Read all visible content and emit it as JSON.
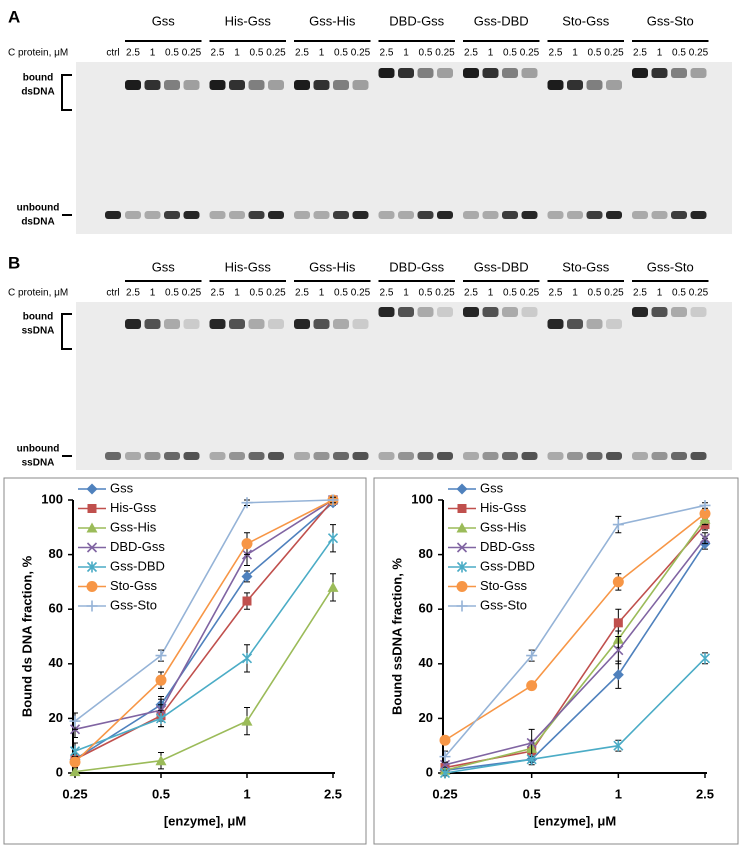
{
  "gels": [
    {
      "label": "A",
      "groups": [
        "Gss",
        "His-Gss",
        "Gss-His",
        "DBD-Gss",
        "Gss-DBD",
        "Sto-Gss",
        "Gss-Sto"
      ],
      "row_label": "C protein, μM",
      "lanes": [
        "ctrl",
        "2.5",
        "1",
        "0.5",
        "0.25",
        "2.5",
        "1",
        "0.5",
        "0.25",
        "2.5",
        "1",
        "0.5",
        "0.25",
        "2.5",
        "1",
        "0.5",
        "0.25",
        "2.5",
        "1",
        "0.5",
        "0.25",
        "2.5",
        "1",
        "0.5",
        "0.25",
        "2.5",
        "1",
        "0.5",
        "0.25"
      ],
      "bound_label": [
        "bound",
        "dsDNA"
      ],
      "unbound_label": [
        "unbound",
        "dsDNA"
      ]
    },
    {
      "label": "B",
      "groups": [
        "Gss",
        "His-Gss",
        "Gss-His",
        "DBD-Gss",
        "Gss-DBD",
        "Sto-Gss",
        "Gss-Sto"
      ],
      "row_label": "C protein, μM",
      "lanes": [
        "ctrl",
        "2.5",
        "1",
        "0.5",
        "0.25",
        "2.5",
        "1",
        "0.5",
        "0.25",
        "2.5",
        "1",
        "0.5",
        "0.25",
        "2.5",
        "1",
        "0.5",
        "0.25",
        "2.5",
        "1",
        "0.5",
        "0.25",
        "2.5",
        "1",
        "0.5",
        "0.25",
        "2.5",
        "1",
        "0.5",
        "0.25"
      ],
      "bound_label": [
        "bound",
        "ssDNA"
      ],
      "unbound_label": [
        "unbound",
        "ssDNA"
      ]
    }
  ],
  "chart_data": [
    {
      "type": "line",
      "x_label": "[enzyme], μM",
      "y_label": "Bound ds DNA fraction, %",
      "categories": [
        "0.25",
        "0.5",
        "1",
        "2.5"
      ],
      "ylim": [
        0,
        100
      ],
      "yticks": [
        0,
        20,
        40,
        60,
        80,
        100
      ],
      "legend": "top-left",
      "series": [
        {
          "name": "Gss",
          "color": "#4f81bd",
          "marker": "diamond",
          "values": [
            5,
            25,
            72,
            99
          ],
          "errors": [
            2,
            3,
            2,
            1
          ]
        },
        {
          "name": "His-Gss",
          "color": "#c0504d",
          "marker": "square",
          "values": [
            5,
            21,
            63,
            100
          ],
          "errors": [
            2,
            4,
            3,
            1
          ]
        },
        {
          "name": "Gss-His",
          "color": "#9bbb59",
          "marker": "triangle",
          "values": [
            0.5,
            4.5,
            19,
            68
          ],
          "errors": [
            1,
            3,
            5,
            5
          ]
        },
        {
          "name": "DBD-Gss",
          "color": "#8064a2",
          "marker": "x",
          "values": [
            16,
            23,
            80,
            100
          ],
          "errors": [
            3,
            4,
            4,
            1
          ]
        },
        {
          "name": "Gss-DBD",
          "color": "#4bacc6",
          "marker": "star",
          "values": [
            8,
            20,
            42,
            86
          ],
          "errors": [
            3,
            3,
            5,
            5
          ]
        },
        {
          "name": "Sto-Gss",
          "color": "#f79646",
          "marker": "circle",
          "values": [
            4,
            34,
            84,
            100
          ],
          "errors": [
            2,
            3,
            4,
            1
          ]
        },
        {
          "name": "Gss-Sto",
          "color": "#95b3d7",
          "marker": "plus",
          "values": [
            19,
            43,
            99,
            100
          ],
          "errors": [
            3,
            2,
            1,
            1
          ]
        }
      ]
    },
    {
      "type": "line",
      "x_label": "[enzyme], μM",
      "y_label": "Bound ssDNA fraction, %",
      "categories": [
        "0.25",
        "0.5",
        "1",
        "2.5"
      ],
      "ylim": [
        0,
        100
      ],
      "yticks": [
        0,
        20,
        40,
        60,
        80,
        100
      ],
      "legend": "top-left",
      "series": [
        {
          "name": "Gss",
          "color": "#4f81bd",
          "marker": "diamond",
          "values": [
            1,
            5,
            36,
            84
          ],
          "errors": [
            1,
            2,
            5,
            2
          ]
        },
        {
          "name": "His-Gss",
          "color": "#c0504d",
          "marker": "square",
          "values": [
            2,
            8,
            55,
            91
          ],
          "errors": [
            1,
            3,
            5,
            2
          ]
        },
        {
          "name": "Gss-His",
          "color": "#9bbb59",
          "marker": "triangle",
          "values": [
            1,
            9,
            49,
            93
          ],
          "errors": [
            1,
            3,
            3,
            2
          ]
        },
        {
          "name": "DBD-Gss",
          "color": "#8064a2",
          "marker": "x",
          "values": [
            3,
            11,
            45,
            86
          ],
          "errors": [
            1,
            5,
            5,
            2
          ]
        },
        {
          "name": "Gss-DBD",
          "color": "#4bacc6",
          "marker": "star",
          "values": [
            0,
            5,
            10,
            42
          ],
          "errors": [
            1,
            1,
            2,
            2
          ]
        },
        {
          "name": "Sto-Gss",
          "color": "#f79646",
          "marker": "circle",
          "values": [
            12,
            32,
            70,
            95
          ],
          "errors": [
            1,
            1,
            3,
            1
          ]
        },
        {
          "name": "Gss-Sto",
          "color": "#95b3d7",
          "marker": "plus",
          "values": [
            6,
            43,
            91,
            98
          ],
          "errors": [
            2,
            2,
            3,
            1
          ]
        }
      ]
    }
  ]
}
